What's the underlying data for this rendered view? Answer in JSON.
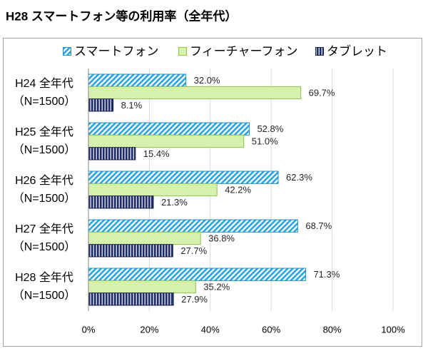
{
  "chart_data": {
    "type": "bar",
    "orientation": "horizontal",
    "title": "H28 スマートフォン等の利用率（全年代）",
    "categories": [
      [
        "H24 全年代",
        "（N=1500）"
      ],
      [
        "H25 全年代",
        "（N=1500）"
      ],
      [
        "H26 全年代",
        "（N=1500）"
      ],
      [
        "H27 全年代",
        "（N=1500）"
      ],
      [
        "H28 全年代",
        "（N=1500）"
      ]
    ],
    "series": [
      {
        "name": "スマートフォン",
        "values": [
          32.0,
          52.8,
          62.3,
          68.7,
          71.3
        ],
        "data_labels": [
          "32.0%",
          "52.8%",
          "62.3%",
          "68.7%",
          "71.3%"
        ],
        "color": "#29a3df",
        "border_color": "#1f8fcf"
      },
      {
        "name": "フィーチャーフォン",
        "values": [
          69.7,
          51.0,
          42.2,
          36.8,
          35.2
        ],
        "data_labels": [
          "69.7%",
          "51.0%",
          "42.2%",
          "36.8%",
          "35.2%"
        ],
        "color": "#d6f0ad",
        "border_color": "#8fc04d"
      },
      {
        "name": "タブレット",
        "values": [
          8.1,
          15.4,
          21.3,
          27.7,
          27.9
        ],
        "data_labels": [
          "8.1%",
          "15.4%",
          "21.3%",
          "27.7%",
          "27.9%"
        ],
        "color": "#1d2b63",
        "border_color": "#16224f"
      }
    ],
    "xlim": [
      0,
      100
    ],
    "x_ticks": [
      0,
      20,
      40,
      60,
      80,
      100
    ],
    "x_tick_labels": [
      "0%",
      "20%",
      "40%",
      "60%",
      "80%",
      "100%"
    ],
    "grid": true,
    "legend": "top"
  }
}
